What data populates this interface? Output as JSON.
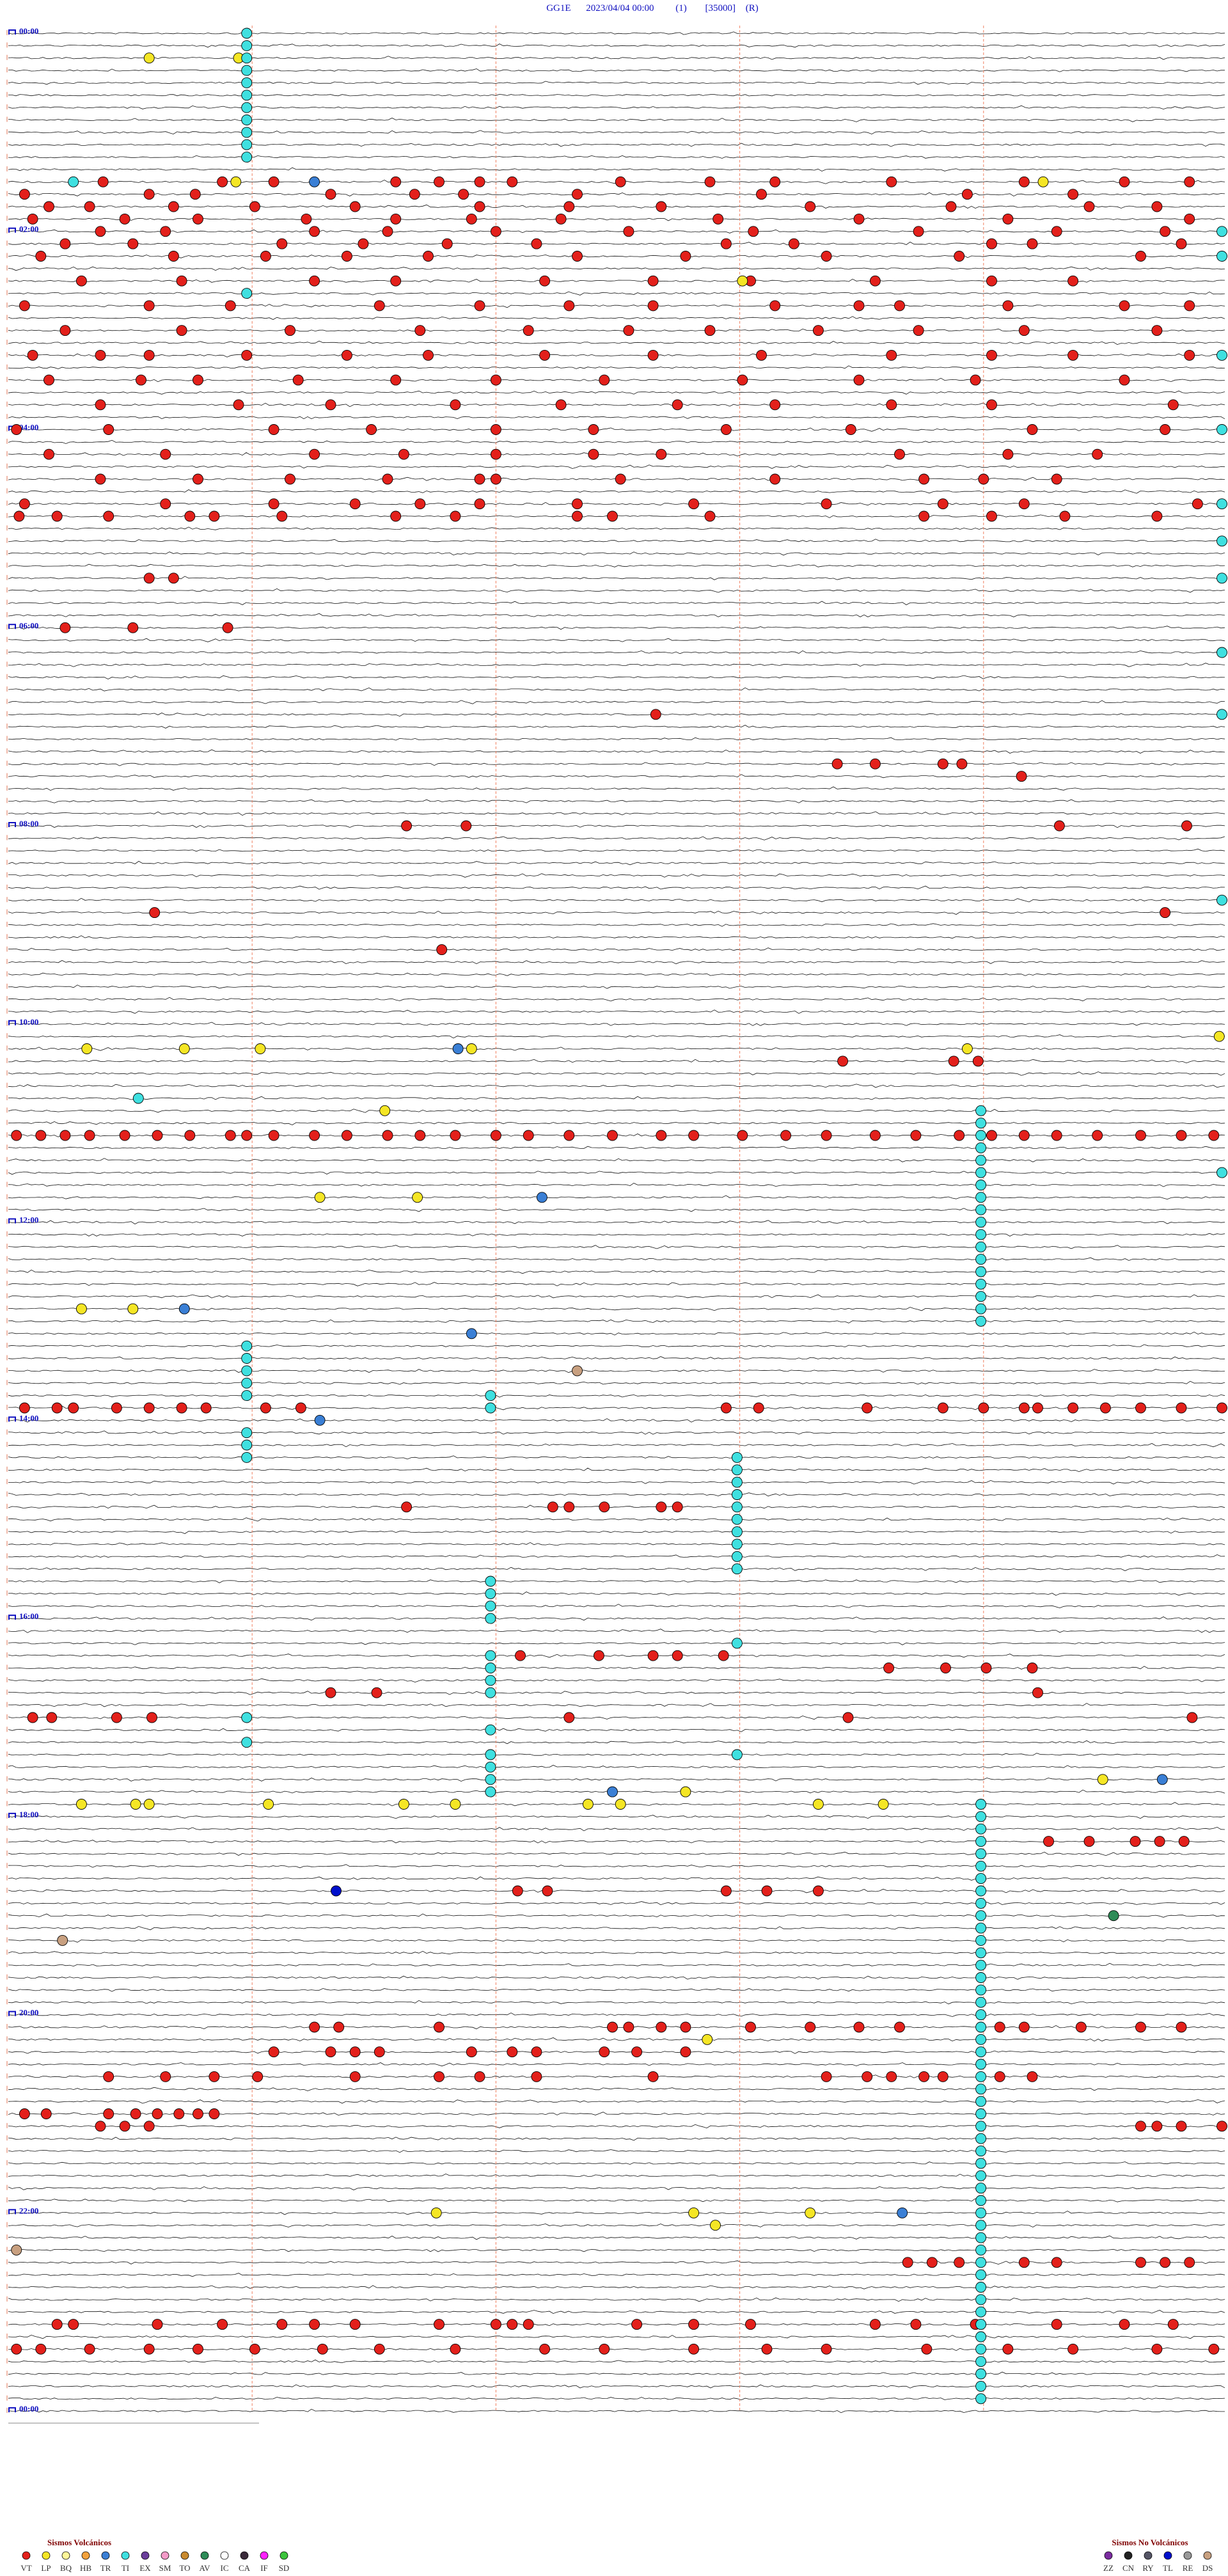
{
  "header": {
    "station": "GG1E",
    "datetime": "2023/04/04 00:00",
    "channel": "(1)",
    "scale": "[35000]",
    "mode": "(R)"
  },
  "time_labels": [
    "00:00",
    "02:00",
    "04:00",
    "06:00",
    "08:00",
    "10:00",
    "12:00",
    "14:00",
    "16:00",
    "18:00",
    "20:00",
    "22:00",
    "00:00"
  ],
  "volcanic": {
    "title": "Sismos Volcánicos",
    "types": [
      {
        "code": "VT",
        "color": "#e3201b",
        "events": [
          5435,
          5479,
          5498,
          5543,
          5559,
          5574,
          5586,
          5626,
          5659,
          5683,
          5726,
          5775,
          5812,
          5836,
          5856,
          5902,
          5919,
          5969,
          6000,
          6018,
          6060,
          6128,
          6204,
          6243,
          6315,
          6330,
          6361,
          6391,
          6428,
          6474,
          6507,
          6541,
          6596,
          6648,
          6699,
          6724,
          6759,
          6793,
          6820,
          6860,
          6893,
          6921,
          6954,
          7012,
          7064,
          7119,
          7186,
          7234,
          7258,
          7313,
          7340,
          7380,
          7429,
          7475,
          7536,
          7587,
          7627,
          7671,
          7696,
          7751,
          7781,
          7812,
          7845,
          7915,
          7940,
          8013,
          8028,
          8083,
          8112,
          8161,
          8195,
          8225,
          8255,
          8310,
          8350,
          8402,
          8451,
          8518,
          9027,
          9064,
          9113,
          9143,
          9198,
          9238,
          9274,
          9320,
          9363,
          9393,
          9906,
          9952,
          9982,
          10037,
          10074,
          10107,
          10138,
          10183,
          10214,
          10229,
          10269,
          10312,
          10336,
          10821,
          10864,
          10904,
          10952,
          10992,
          11029,
          11059,
          11099,
          11136,
          11175,
          11224,
          11709,
          11734,
          11752,
          11788,
          11825,
          11855,
          11898,
          11938,
          11978,
          12026,
          12063,
          12093,
          12136,
          12615,
          12649,
          12670,
          12707,
          12743,
          12780,
          12820,
          12871,
          12914,
          12957,
          13012,
          13534,
          13585,
          13619,
          13665,
          13704,
          13747,
          13783,
          13826,
          13863,
          13930,
          14403,
          14437,
          14498,
          14534,
          14580,
          14616,
          14665,
          14711,
          14778,
          14827,
          15315,
          15358,
          15413,
          15446,
          15480,
          15516,
          15541,
          15629,
          15669,
          15702,
          16234,
          16270,
          16304,
          16340,
          16374,
          16380,
          16426,
          16483,
          16538,
          16560,
          16587,
          17106,
          17158,
          17198,
          17228,
          17252,
          17274,
          17310,
          17353,
          17402,
          17445,
          17475,
          17539,
          17554,
          17568,
          17587,
          17617,
          17626,
          17651,
          17693,
          17715,
          17760,
          17773,
          17809,
          17888,
          17913,
          17940,
          17974,
          19852,
          19861,
          21621,
          21646,
          21681,
          24989,
          26856,
          26870,
          26895,
          26902,
          27374,
          28947,
          28969,
          29188,
          29235,
          32004,
          32377,
          33460,
          37658,
          37699,
          37708,
          40053,
          40062,
          40071,
          40080,
          40093,
          40105,
          40117,
          40132,
          40138,
          40148,
          40163,
          40175,
          40190,
          40202,
          40215,
          40230,
          40242,
          40257,
          40273,
          40291,
          40303,
          40321,
          40337,
          40352,
          40370,
          40385,
          40401,
          40413,
          40425,
          40437,
          40452,
          40468,
          40483,
          40495,
          49956,
          49968,
          49974,
          49990,
          50002,
          50014,
          50023,
          50045,
          50058,
          50215,
          50227,
          50267,
          50295,
          50310,
          50325,
          50330,
          50343,
          50355,
          50368,
          50383,
          50398,
          53697,
          53751,
          53757,
          53770,
          53791,
          53797,
          59139,
          59168,
          59188,
          59197,
          59214,
          59725,
          59746,
          59761,
          59778,
          60419,
          60436,
          60680,
          61209,
          61216,
          61240,
          61253,
          61407,
          61510,
          61637,
          66084,
          66099,
          66116,
          66125,
          66134,
          67688,
          67699,
          67765,
          67780,
          67799,
          72563,
          72572,
          72609,
          72673,
          72679,
          72691,
          72700,
          72724,
          72746,
          72764,
          72779,
          72816,
          72825,
          72846,
          72868,
          72883,
          73448,
          73469,
          73478,
          73487,
          73521,
          73536,
          73545,
          73570,
          73582,
          73600,
          74287,
          74308,
          74326,
          74342,
          74378,
          74409,
          74424,
          74445,
          74488,
          74552,
          74567,
          74576,
          74588,
          74595,
          74616,
          74628,
          75606,
          75614,
          75637,
          75647,
          75655,
          75663,
          75670,
          75676,
          76084,
          76093,
          76102,
          76468,
          76474,
          76483,
          76498,
          81332,
          81341,
          81351,
          81375,
          81387,
          81418,
          81427,
          81436,
          83268,
          83274,
          83305,
          83329,
          83351,
          83363,
          83378,
          83409,
          83430,
          83436,
          83442,
          83482,
          83503,
          83524,
          83570,
          83585,
          83607,
          83637,
          83662,
          83680,
          84153,
          84162,
          84180,
          84202,
          84220,
          84241,
          84266,
          84287,
          84315,
          84348,
          84370,
          84403,
          84430,
          84452,
          84489,
          84519,
          84543,
          84574,
          84595
        ]
      },
      {
        "code": "LP",
        "color": "#f5e625",
        "events": [
          952,
          985,
          5484,
          5782,
          9271,
          36929,
          36965,
          36993,
          37071,
          37254,
          36897,
          39289,
          42415,
          42451,
          46377,
          46396,
          64397,
          64377,
          64402,
          64446,
          64496,
          64515,
          64564,
          64576,
          64150,
          64649,
          64673,
          63854,
          73158,
          79358,
          79453,
          79496,
          79911
        ]
      },
      {
        "code": "BQ",
        "color": "#fff799",
        "events": []
      },
      {
        "code": "HB",
        "color": "#f4a23c",
        "events": []
      },
      {
        "code": "TR",
        "color": "#3a7fd5",
        "events": [
          5513,
          37066,
          42497,
          46415,
          47421,
          50515,
          64123,
          79530,
          63876
        ]
      },
      {
        "code": "TI",
        "color": "#3fe0e0",
        "events": [
          88,
          538,
          988,
          1438,
          1888,
          2338,
          2788,
          3238,
          3688,
          4138,
          4588,
          5424,
          9538,
          7648,
          8548,
          12148,
          14848,
          17548,
          18898,
          20248,
          22948,
          25198,
          31948,
          38748,
          41848,
          39509,
          39959,
          40409,
          40859,
          41309,
          41759,
          42209,
          42659,
          43109,
          43559,
          44009,
          44459,
          44909,
          45359,
          45809,
          46259,
          46709,
          47159,
          47788,
          48238,
          48688,
          49138,
          49588,
          50938,
          51388,
          51838,
          49678,
          50128,
          52019,
          52469,
          52919,
          53369,
          53819,
          54269,
          54719,
          55169,
          55619,
          56069,
          56428,
          56878,
          57328,
          57778,
          59128,
          59578,
          60028,
          60478,
          61288,
          62188,
          61828,
          62728,
          63178,
          63628,
          64078,
          62819,
          58769,
          64709,
          65159,
          65609,
          66059,
          66509,
          66959,
          67409,
          67859,
          68309,
          68759,
          69209,
          69659,
          70109,
          70559,
          71009,
          71459,
          71909,
          72359,
          72809,
          73259,
          73709,
          74159,
          74609,
          75059,
          75509,
          75959,
          76409,
          76859,
          77309,
          77759,
          78209,
          78659,
          79109,
          79559,
          80009,
          80459,
          80909,
          81359,
          81809,
          82259,
          82709,
          83159,
          83609,
          84059,
          84509,
          84959,
          85409,
          85859,
          86309
        ]
      },
      {
        "code": "EX",
        "color": "#6a3d9a",
        "events": []
      },
      {
        "code": "SM",
        "color": "#f49ac8",
        "events": []
      },
      {
        "code": "TO",
        "color": "#c98a2e",
        "events": []
      },
      {
        "code": "AV",
        "color": "#2e8b57",
        "events": [
          68808
        ]
      },
      {
        "code": "IC",
        "color": "#ffffff",
        "events": []
      },
      {
        "code": "CA",
        "color": "#3a2a3a",
        "events": []
      },
      {
        "code": "IF",
        "color": "#ff22ff",
        "events": []
      },
      {
        "code": "SD",
        "color": "#3cc43c",
        "events": []
      }
    ]
  },
  "non_volcanic": {
    "title": "Sismos No Volcánicos",
    "types": [
      {
        "code": "ZZ",
        "color": "#7b2ca0",
        "events": []
      },
      {
        "code": "CN",
        "color": "#222222",
        "events": []
      },
      {
        "code": "RY",
        "color": "#555566",
        "events": []
      },
      {
        "code": "TL",
        "color": "#0010cc",
        "events": [
          67621
        ]
      },
      {
        "code": "RE",
        "color": "#999999",
        "events": []
      },
      {
        "code": "DS",
        "color": "#c8a080",
        "events": [
          48810,
          69320,
          80553
        ]
      }
    ]
  }
}
